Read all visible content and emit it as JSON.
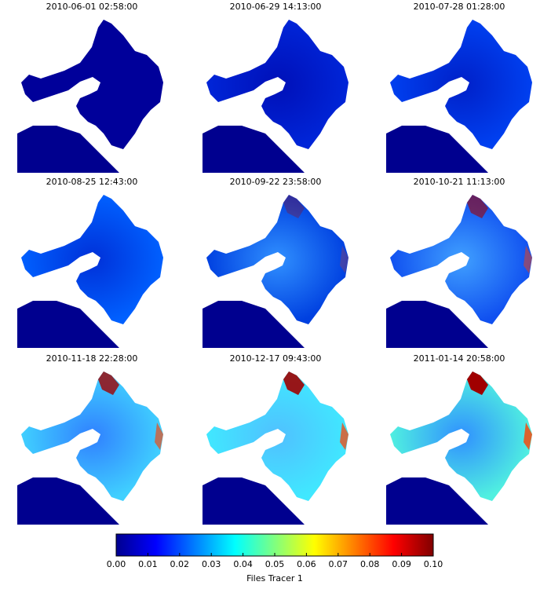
{
  "panels": [
    {
      "title": "2010-06-01 02:58:00"
    },
    {
      "title": "2010-06-29 14:13:00"
    },
    {
      "title": "2010-07-28 01:28:00"
    },
    {
      "title": "2010-08-25 12:43:00"
    },
    {
      "title": "2010-09-22 23:58:00"
    },
    {
      "title": "2010-10-21 11:13:00"
    },
    {
      "title": "2010-11-18 22:28:00"
    },
    {
      "title": "2010-12-17 09:43:00"
    },
    {
      "title": "2011-01-14 20:58:00"
    }
  ],
  "colorbar": {
    "label": "Files Tracer 1",
    "lim": [
      0,
      0.1
    ],
    "ticks": [
      {
        "value": 0,
        "label": "0.00"
      },
      0.01,
      0.02,
      0.03,
      0.04,
      0.05,
      0.06,
      0.07,
      0.08,
      0.09,
      {
        "value": 0.1,
        "label": "0.10"
      }
    ]
  }
}
